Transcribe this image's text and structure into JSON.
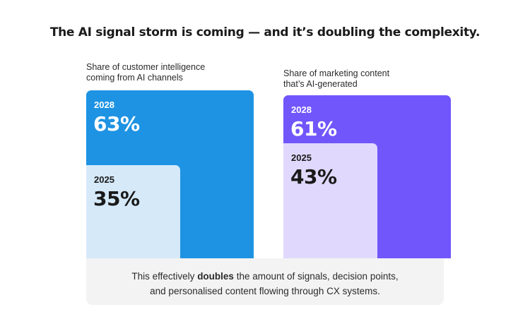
{
  "title": "The AI signal storm is coming — and it’s doubling the complexity.",
  "chart_data": [
    {
      "type": "bar",
      "panel_label": [
        "Share of customer intelligence",
        "coming from AI channels"
      ],
      "categories": [
        "2028",
        "2025"
      ],
      "values": [
        63,
        35
      ],
      "value_labels": [
        "63%",
        "35%"
      ],
      "colors": {
        "outer": "#1e93e3",
        "inner": "#d5e9f9",
        "outer_text": "#ffffff",
        "inner_text": "#1a1a1a"
      }
    },
    {
      "type": "bar",
      "panel_label": [
        "Share of marketing content",
        "that’s AI-generated"
      ],
      "categories": [
        "2028",
        "2025"
      ],
      "values": [
        61,
        43
      ],
      "value_labels": [
        "61%",
        "43%"
      ],
      "colors": {
        "outer": "#7156fb",
        "inner": "#e0d9fd",
        "outer_text": "#ffffff",
        "inner_text": "#1a1a1a"
      }
    }
  ],
  "footer": {
    "line1_pre": "This effectively ",
    "line1_bold": "doubles",
    "line1_post": " the amount of signals, decision points,",
    "line2": "and personalised content flowing through CX systems."
  }
}
